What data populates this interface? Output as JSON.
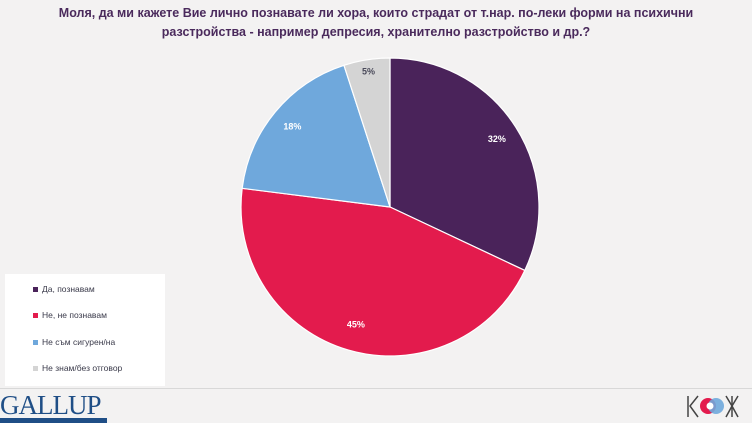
{
  "title": "Моля, да ми кажете Вие лично познавате ли хора, които страдат от т.нар. по-леки форми на психични разстройства - например депресия, хранително разстройство и др.?",
  "title_lines": [
    "Моля, да ми кажете Вие лично познавате ли хора, които страдат от т.нар. по-леки форми на психични",
    "разстройства - например депресия, хранително разстройство и др.?"
  ],
  "chart_data": {
    "type": "pie",
    "title": "Моля, да ми кажете Вие лично познавате ли хора, които страдат от т.нар. по-леки форми на психични разстройства - например депресия, хранително разстройство и др.?",
    "categories": [
      "Да, познавам",
      "Не, не познавам",
      "Не съм сигурен/на",
      "Не знам/без отговор"
    ],
    "values": [
      32,
      45,
      18,
      5
    ],
    "labels": [
      "32%",
      "45%",
      "18%",
      "5%"
    ],
    "colors": [
      "#4a235a",
      "#e31b4d",
      "#6fa8dc",
      "#d4d4d4"
    ],
    "legend_position": "bottom-left"
  },
  "legend": [
    {
      "label": "Да, познавам",
      "color": "#4a235a"
    },
    {
      "label": "Не, не познавам",
      "color": "#e31b4d"
    },
    {
      "label": "Не съм сигурен/на",
      "color": "#6fa8dc"
    },
    {
      "label": "Не знам/без отговор",
      "color": "#d4d4d4"
    }
  ],
  "footer": {
    "left_logo": "GALLUP",
    "right_logo": "КОЖ"
  }
}
